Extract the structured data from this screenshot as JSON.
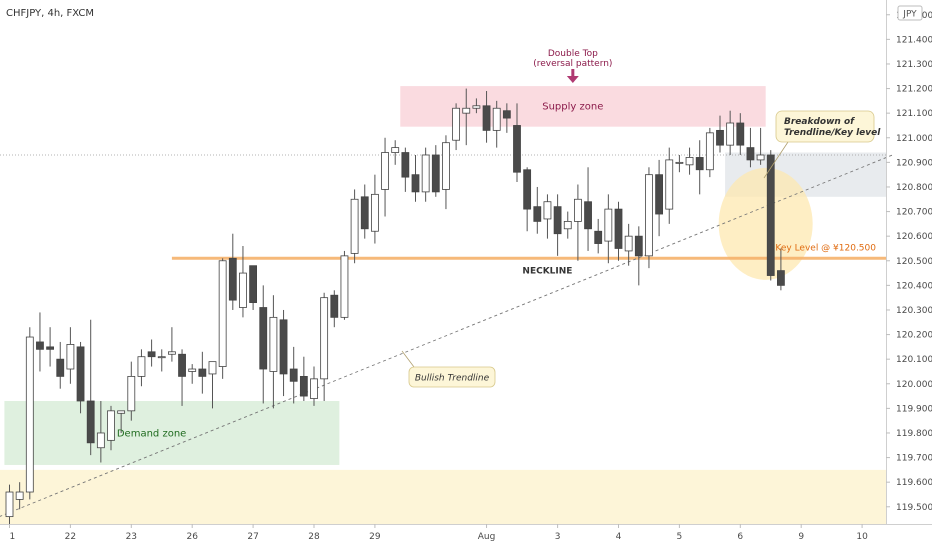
{
  "header": {
    "title": "CHFJPY, 4h, FXCM",
    "currency": "JPY"
  },
  "colors": {
    "bull_candle": "#ffffff",
    "bear_candle": "#4a4a4a",
    "wick": "#555555",
    "neckline": "#f6b26b",
    "supply_fill": "#fadbe0",
    "demand_fill": "#dff0df",
    "key_zone_fill": "#fdf5d8",
    "grey_box_fill": "#e8ebee",
    "highlight_ellipse": "#fde8b0",
    "trendline": "#777777",
    "accent_text": "#8b1a4a",
    "key_level_text": "#e06b10",
    "demand_text": "#1f6b1f",
    "supply_text": "#8b1a4a"
  },
  "chart_data": {
    "type": "candlestick",
    "title": "CHFJPY, 4h, FXCM",
    "ylabel": "JPY",
    "ylim": [
      119.43,
      121.56
    ],
    "y_ticks": [
      121.5,
      121.4,
      121.3,
      121.2,
      121.1,
      121.0,
      120.9,
      120.8,
      120.7,
      120.6,
      120.5,
      120.4,
      120.3,
      120.2,
      120.1,
      120.0,
      119.9,
      119.8,
      119.7,
      119.6,
      119.5
    ],
    "y_tick_labels": [
      "121.500",
      "121.400",
      "121.300",
      "121.200",
      "121.100",
      "121.000",
      "120.900",
      "120.800",
      "120.700",
      "120.600",
      "120.500",
      "120.400",
      "120.300",
      "120.200",
      "120.100",
      "120.000",
      "119.900",
      "119.800",
      "119.700",
      "119.600",
      "119.500"
    ],
    "x_labels": [
      "1",
      "22",
      "23",
      "26",
      "27",
      "28",
      "29",
      "Aug",
      "3",
      "4",
      "5",
      "6",
      "9",
      "10"
    ],
    "x_label_bars": [
      0,
      6,
      12,
      18,
      24,
      30,
      36,
      47,
      54,
      60,
      66,
      72,
      78,
      84
    ],
    "candles": [
      [
        119.46,
        119.56,
        119.42,
        119.59
      ],
      [
        119.53,
        119.56,
        119.49,
        119.6
      ],
      [
        119.56,
        120.19,
        119.53,
        120.23
      ],
      [
        120.17,
        120.14,
        120.05,
        120.29
      ],
      [
        120.15,
        120.14,
        120.07,
        120.23
      ],
      [
        120.1,
        120.03,
        119.98,
        120.17
      ],
      [
        120.06,
        120.16,
        120.0,
        120.23
      ],
      [
        120.15,
        119.93,
        119.88,
        120.17
      ],
      [
        119.93,
        119.76,
        119.71,
        120.26
      ],
      [
        119.74,
        119.8,
        119.68,
        119.93
      ],
      [
        119.77,
        119.89,
        119.73,
        119.91
      ],
      [
        119.88,
        119.89,
        119.8,
        119.89
      ],
      [
        119.89,
        120.03,
        119.85,
        120.09
      ],
      [
        120.03,
        120.11,
        119.99,
        120.14
      ],
      [
        120.13,
        120.11,
        120.07,
        120.18
      ],
      [
        120.11,
        120.11,
        120.05,
        120.14
      ],
      [
        120.12,
        120.13,
        120.09,
        120.23
      ],
      [
        120.12,
        120.03,
        119.91,
        120.14
      ],
      [
        120.05,
        120.06,
        120.0,
        120.08
      ],
      [
        120.06,
        120.03,
        119.96,
        120.13
      ],
      [
        120.04,
        120.09,
        119.9,
        120.09
      ],
      [
        120.07,
        120.5,
        120.02,
        120.51
      ],
      [
        120.51,
        120.34,
        120.3,
        120.61
      ],
      [
        120.31,
        120.45,
        120.27,
        120.56
      ],
      [
        120.48,
        120.33,
        120.3,
        120.48
      ],
      [
        120.31,
        120.06,
        119.92,
        120.4
      ],
      [
        120.05,
        120.27,
        119.9,
        120.36
      ],
      [
        120.26,
        120.04,
        119.95,
        120.3
      ],
      [
        120.06,
        120.01,
        119.92,
        120.15
      ],
      [
        120.03,
        119.95,
        119.93,
        120.11
      ],
      [
        119.94,
        120.02,
        119.91,
        120.07
      ],
      [
        120.02,
        120.35,
        119.93,
        120.37
      ],
      [
        120.36,
        120.27,
        120.23,
        120.38
      ],
      [
        120.27,
        120.52,
        120.26,
        120.54
      ],
      [
        120.53,
        120.75,
        120.49,
        120.79
      ],
      [
        120.76,
        120.63,
        120.59,
        120.81
      ],
      [
        120.62,
        120.77,
        120.57,
        120.85
      ],
      [
        120.79,
        120.94,
        120.68,
        121.0
      ],
      [
        120.94,
        120.96,
        120.89,
        120.99
      ],
      [
        120.94,
        120.84,
        120.78,
        120.96
      ],
      [
        120.85,
        120.78,
        120.74,
        120.93
      ],
      [
        120.78,
        120.93,
        120.74,
        120.96
      ],
      [
        120.93,
        120.78,
        120.76,
        120.97
      ],
      [
        120.79,
        120.98,
        120.71,
        121.01
      ],
      [
        120.99,
        121.12,
        120.95,
        121.14
      ],
      [
        121.1,
        121.12,
        120.97,
        121.2
      ],
      [
        121.12,
        121.13,
        121.1,
        121.16
      ],
      [
        121.13,
        121.03,
        120.98,
        121.19
      ],
      [
        121.03,
        121.12,
        120.96,
        121.15
      ],
      [
        121.11,
        121.08,
        121.02,
        121.14
      ],
      [
        121.05,
        120.86,
        120.82,
        121.14
      ],
      [
        120.87,
        120.71,
        120.62,
        120.88
      ],
      [
        120.72,
        120.66,
        120.61,
        120.8
      ],
      [
        120.67,
        120.74,
        120.59,
        120.77
      ],
      [
        120.72,
        120.61,
        120.52,
        120.77
      ],
      [
        120.63,
        120.66,
        120.59,
        120.7
      ],
      [
        120.66,
        120.75,
        120.5,
        120.81
      ],
      [
        120.74,
        120.63,
        120.54,
        120.88
      ],
      [
        120.62,
        120.57,
        120.53,
        120.67
      ],
      [
        120.58,
        120.71,
        120.49,
        120.77
      ],
      [
        120.71,
        120.55,
        120.5,
        120.74
      ],
      [
        120.54,
        120.6,
        120.48,
        120.65
      ],
      [
        120.6,
        120.52,
        120.4,
        120.64
      ],
      [
        120.52,
        120.85,
        120.47,
        120.88
      ],
      [
        120.85,
        120.69,
        120.6,
        120.91
      ],
      [
        120.71,
        120.91,
        120.65,
        120.96
      ],
      [
        120.9,
        120.9,
        120.86,
        120.93
      ],
      [
        120.89,
        120.92,
        120.85,
        120.96
      ],
      [
        120.92,
        120.87,
        120.77,
        120.99
      ],
      [
        120.87,
        121.02,
        120.84,
        121.04
      ],
      [
        121.03,
        120.97,
        120.94,
        121.09
      ],
      [
        120.97,
        121.06,
        120.93,
        121.11
      ],
      [
        121.06,
        120.97,
        120.93,
        121.1
      ],
      [
        120.96,
        120.91,
        120.88,
        121.04
      ],
      [
        120.91,
        120.93,
        120.89,
        121.04
      ],
      [
        120.93,
        120.44,
        120.42,
        120.95
      ],
      [
        120.46,
        120.4,
        120.38,
        120.55
      ]
    ],
    "neckline": 120.51,
    "current_price": 120.93,
    "zones": {
      "supply": {
        "label": "Supply zone",
        "bar_from": 39,
        "bar_to": 74,
        "y_from": 121.045,
        "y_to": 121.21
      },
      "demand": {
        "label": "Demand zone",
        "bar_from": 0,
        "bar_to": 32,
        "y_from": 119.67,
        "y_to": 119.93
      },
      "key_band": {
        "bar_from": -2,
        "bar_to": 94,
        "y_from": 119.43,
        "y_to": 119.65
      },
      "grey_box": {
        "bar_from": 71,
        "bar_to": 88,
        "y_from": 120.76,
        "y_to": 120.94
      }
    },
    "trendline": {
      "from": [
        -1,
        119.46
      ],
      "to": [
        87,
        120.93
      ]
    },
    "annotations": {
      "double_top_line1": "Double Top",
      "double_top_line2": "(reversal pattern)",
      "supply_zone": "Supply zone",
      "demand_zone": "Demand zone",
      "neckline": "NECKLINE",
      "bullish_trendline": "Bullish Trendline",
      "breakdown_line1": "Breakdown of",
      "breakdown_line2": "Trendline/Key level",
      "key_level": "Key Level @ ¥120.500"
    }
  }
}
